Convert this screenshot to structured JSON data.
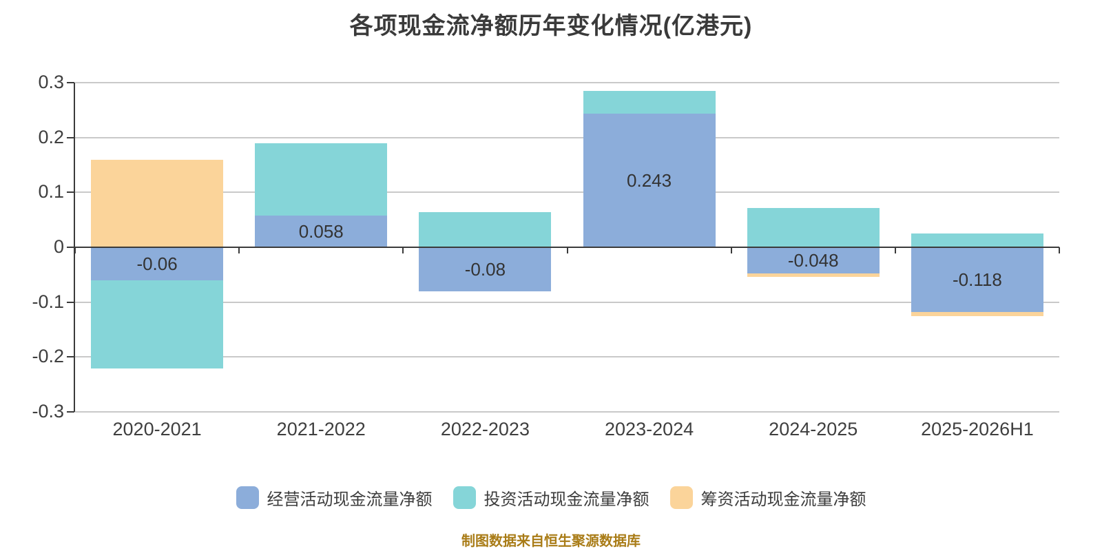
{
  "title": "各项现金流净额历年变化情况(亿港元)",
  "source_note": "制图数据来自恒生聚源数据库",
  "colors": {
    "operating": "#8CADDA",
    "investing": "#85D5D8",
    "financing": "#FBD49A",
    "grid": "#C9C9C9",
    "axis": "#3A3A3A",
    "text": "#3F3F3F",
    "source_note_text": "#A97C17",
    "background": "#FFFFFF"
  },
  "chart_data": {
    "type": "bar",
    "stacked": true,
    "title": "各项现金流净额历年变化情况(亿港元)",
    "categories": [
      "2020-2021",
      "2021-2022",
      "2022-2023",
      "2023-2024",
      "2024-2025",
      "2025-2026H1"
    ],
    "series": [
      {
        "name": "经营活动现金流量净额",
        "color": "#8CADDA",
        "values": [
          -0.06,
          0.058,
          -0.08,
          0.243,
          -0.048,
          -0.118
        ],
        "labels": [
          "-0.06",
          "0.058",
          "-0.08",
          "0.243",
          "-0.048",
          "-0.118"
        ]
      },
      {
        "name": "投资活动现金流量净额",
        "color": "#85D5D8",
        "values": [
          -0.161,
          0.132,
          0.064,
          0.042,
          0.071,
          0.025
        ],
        "labels": [
          "",
          "",
          "",
          "",
          "",
          ""
        ]
      },
      {
        "name": "筹资活动现金流量净额",
        "color": "#FBD49A",
        "values": [
          0.159,
          -0.001,
          0,
          0,
          -0.006,
          -0.008
        ],
        "labels": [
          "",
          "",
          "",
          "",
          "",
          ""
        ]
      }
    ],
    "xlabel": "",
    "ylabel": "",
    "ylim": [
      -0.3,
      0.3
    ],
    "yticks": [
      0.3,
      0.2,
      0.1,
      0,
      -0.1,
      -0.2,
      -0.3
    ],
    "ytick_labels": [
      "0.3",
      "0.2",
      "0.1",
      "0",
      "-0.1",
      "-0.2",
      "-0.3"
    ],
    "grid": true,
    "legend_position": "bottom"
  }
}
